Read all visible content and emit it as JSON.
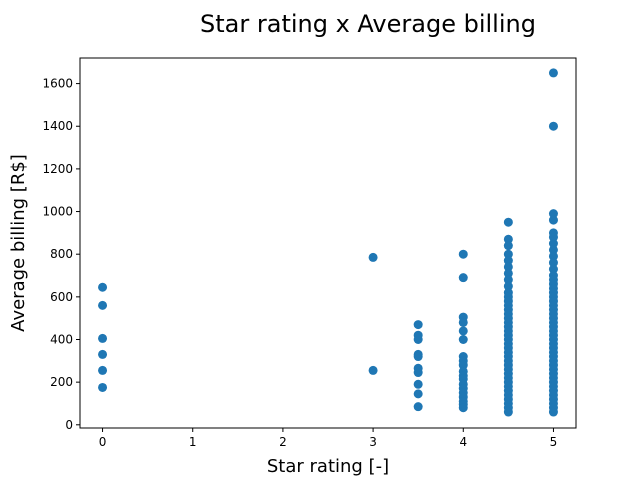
{
  "chart_data": {
    "type": "scatter",
    "title": "Star rating x Average billing",
    "xlabel": "Star rating [-]",
    "ylabel": "Average billing [R$]",
    "xlim": [
      -0.25,
      5.25
    ],
    "ylim": [
      -15,
      1720
    ],
    "xticks": [
      0,
      1,
      2,
      3,
      4,
      5
    ],
    "yticks": [
      0,
      200,
      400,
      600,
      800,
      1000,
      1200,
      1400,
      1600
    ],
    "grid": false,
    "marker_color": "#1f77b4",
    "series": [
      {
        "points": [
          [
            0,
            645
          ],
          [
            0,
            560
          ],
          [
            0,
            405
          ],
          [
            0,
            330
          ],
          [
            0,
            255
          ],
          [
            0,
            175
          ],
          [
            3,
            785
          ],
          [
            3,
            255
          ],
          [
            3.5,
            470
          ],
          [
            3.5,
            420
          ],
          [
            3.5,
            400
          ],
          [
            3.5,
            330
          ],
          [
            3.5,
            320
          ],
          [
            3.5,
            265
          ],
          [
            3.5,
            245
          ],
          [
            3.5,
            190
          ],
          [
            3.5,
            145
          ],
          [
            3.5,
            85
          ],
          [
            4,
            800
          ],
          [
            4,
            690
          ],
          [
            4,
            505
          ],
          [
            4,
            480
          ],
          [
            4,
            440
          ],
          [
            4,
            400
          ],
          [
            4,
            320
          ],
          [
            4,
            300
          ],
          [
            4,
            280
          ],
          [
            4,
            250
          ],
          [
            4,
            230
          ],
          [
            4,
            215
          ],
          [
            4,
            190
          ],
          [
            4,
            170
          ],
          [
            4,
            150
          ],
          [
            4,
            130
          ],
          [
            4,
            110
          ],
          [
            4,
            95
          ],
          [
            4,
            80
          ],
          [
            4.5,
            950
          ],
          [
            4.5,
            870
          ],
          [
            4.5,
            840
          ],
          [
            4.5,
            800
          ],
          [
            4.5,
            770
          ],
          [
            4.5,
            740
          ],
          [
            4.5,
            710
          ],
          [
            4.5,
            680
          ],
          [
            4.5,
            650
          ],
          [
            4.5,
            620
          ],
          [
            4.5,
            600
          ],
          [
            4.5,
            580
          ],
          [
            4.5,
            560
          ],
          [
            4.5,
            540
          ],
          [
            4.5,
            520
          ],
          [
            4.5,
            500
          ],
          [
            4.5,
            480
          ],
          [
            4.5,
            460
          ],
          [
            4.5,
            440
          ],
          [
            4.5,
            420
          ],
          [
            4.5,
            400
          ],
          [
            4.5,
            380
          ],
          [
            4.5,
            360
          ],
          [
            4.5,
            340
          ],
          [
            4.5,
            320
          ],
          [
            4.5,
            300
          ],
          [
            4.5,
            280
          ],
          [
            4.5,
            260
          ],
          [
            4.5,
            240
          ],
          [
            4.5,
            220
          ],
          [
            4.5,
            200
          ],
          [
            4.5,
            180
          ],
          [
            4.5,
            160
          ],
          [
            4.5,
            140
          ],
          [
            4.5,
            120
          ],
          [
            4.5,
            100
          ],
          [
            4.5,
            80
          ],
          [
            4.5,
            60
          ],
          [
            5,
            1650
          ],
          [
            5,
            1400
          ],
          [
            5,
            990
          ],
          [
            5,
            960
          ],
          [
            5,
            900
          ],
          [
            5,
            880
          ],
          [
            5,
            850
          ],
          [
            5,
            820
          ],
          [
            5,
            790
          ],
          [
            5,
            760
          ],
          [
            5,
            730
          ],
          [
            5,
            700
          ],
          [
            5,
            680
          ],
          [
            5,
            660
          ],
          [
            5,
            640
          ],
          [
            5,
            620
          ],
          [
            5,
            600
          ],
          [
            5,
            580
          ],
          [
            5,
            560
          ],
          [
            5,
            540
          ],
          [
            5,
            520
          ],
          [
            5,
            500
          ],
          [
            5,
            480
          ],
          [
            5,
            460
          ],
          [
            5,
            440
          ],
          [
            5,
            420
          ],
          [
            5,
            400
          ],
          [
            5,
            380
          ],
          [
            5,
            360
          ],
          [
            5,
            340
          ],
          [
            5,
            320
          ],
          [
            5,
            300
          ],
          [
            5,
            280
          ],
          [
            5,
            260
          ],
          [
            5,
            240
          ],
          [
            5,
            220
          ],
          [
            5,
            200
          ],
          [
            5,
            180
          ],
          [
            5,
            160
          ],
          [
            5,
            140
          ],
          [
            5,
            120
          ],
          [
            5,
            100
          ],
          [
            5,
            80
          ],
          [
            5,
            60
          ]
        ]
      }
    ]
  }
}
